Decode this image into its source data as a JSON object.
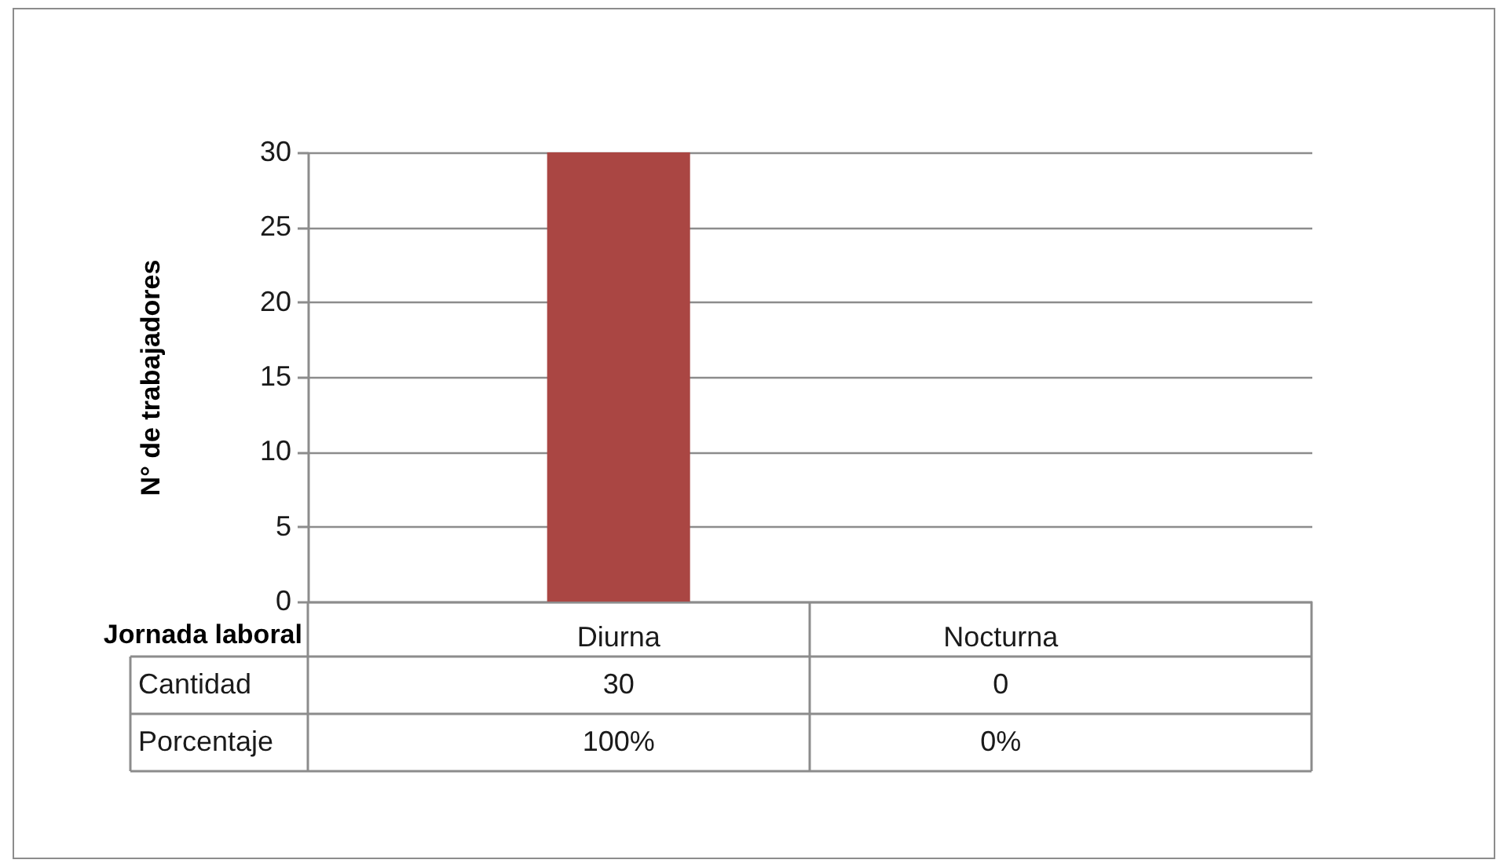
{
  "chart_data": {
    "type": "bar",
    "xlabel": "Jornada laboral",
    "ylabel": "N° de trabajadores",
    "categories": [
      "Diurna",
      "Nocturna"
    ],
    "values": [
      30,
      0
    ],
    "color": "#aa4643",
    "ylim": [
      0,
      30
    ],
    "yticks": [
      0,
      5,
      10,
      15,
      20,
      25,
      30
    ],
    "grid": "y",
    "data_labels": true,
    "annotations": [
      "Cantidad",
      "Porcentaje",
      "100%",
      "0%"
    ]
  }
}
